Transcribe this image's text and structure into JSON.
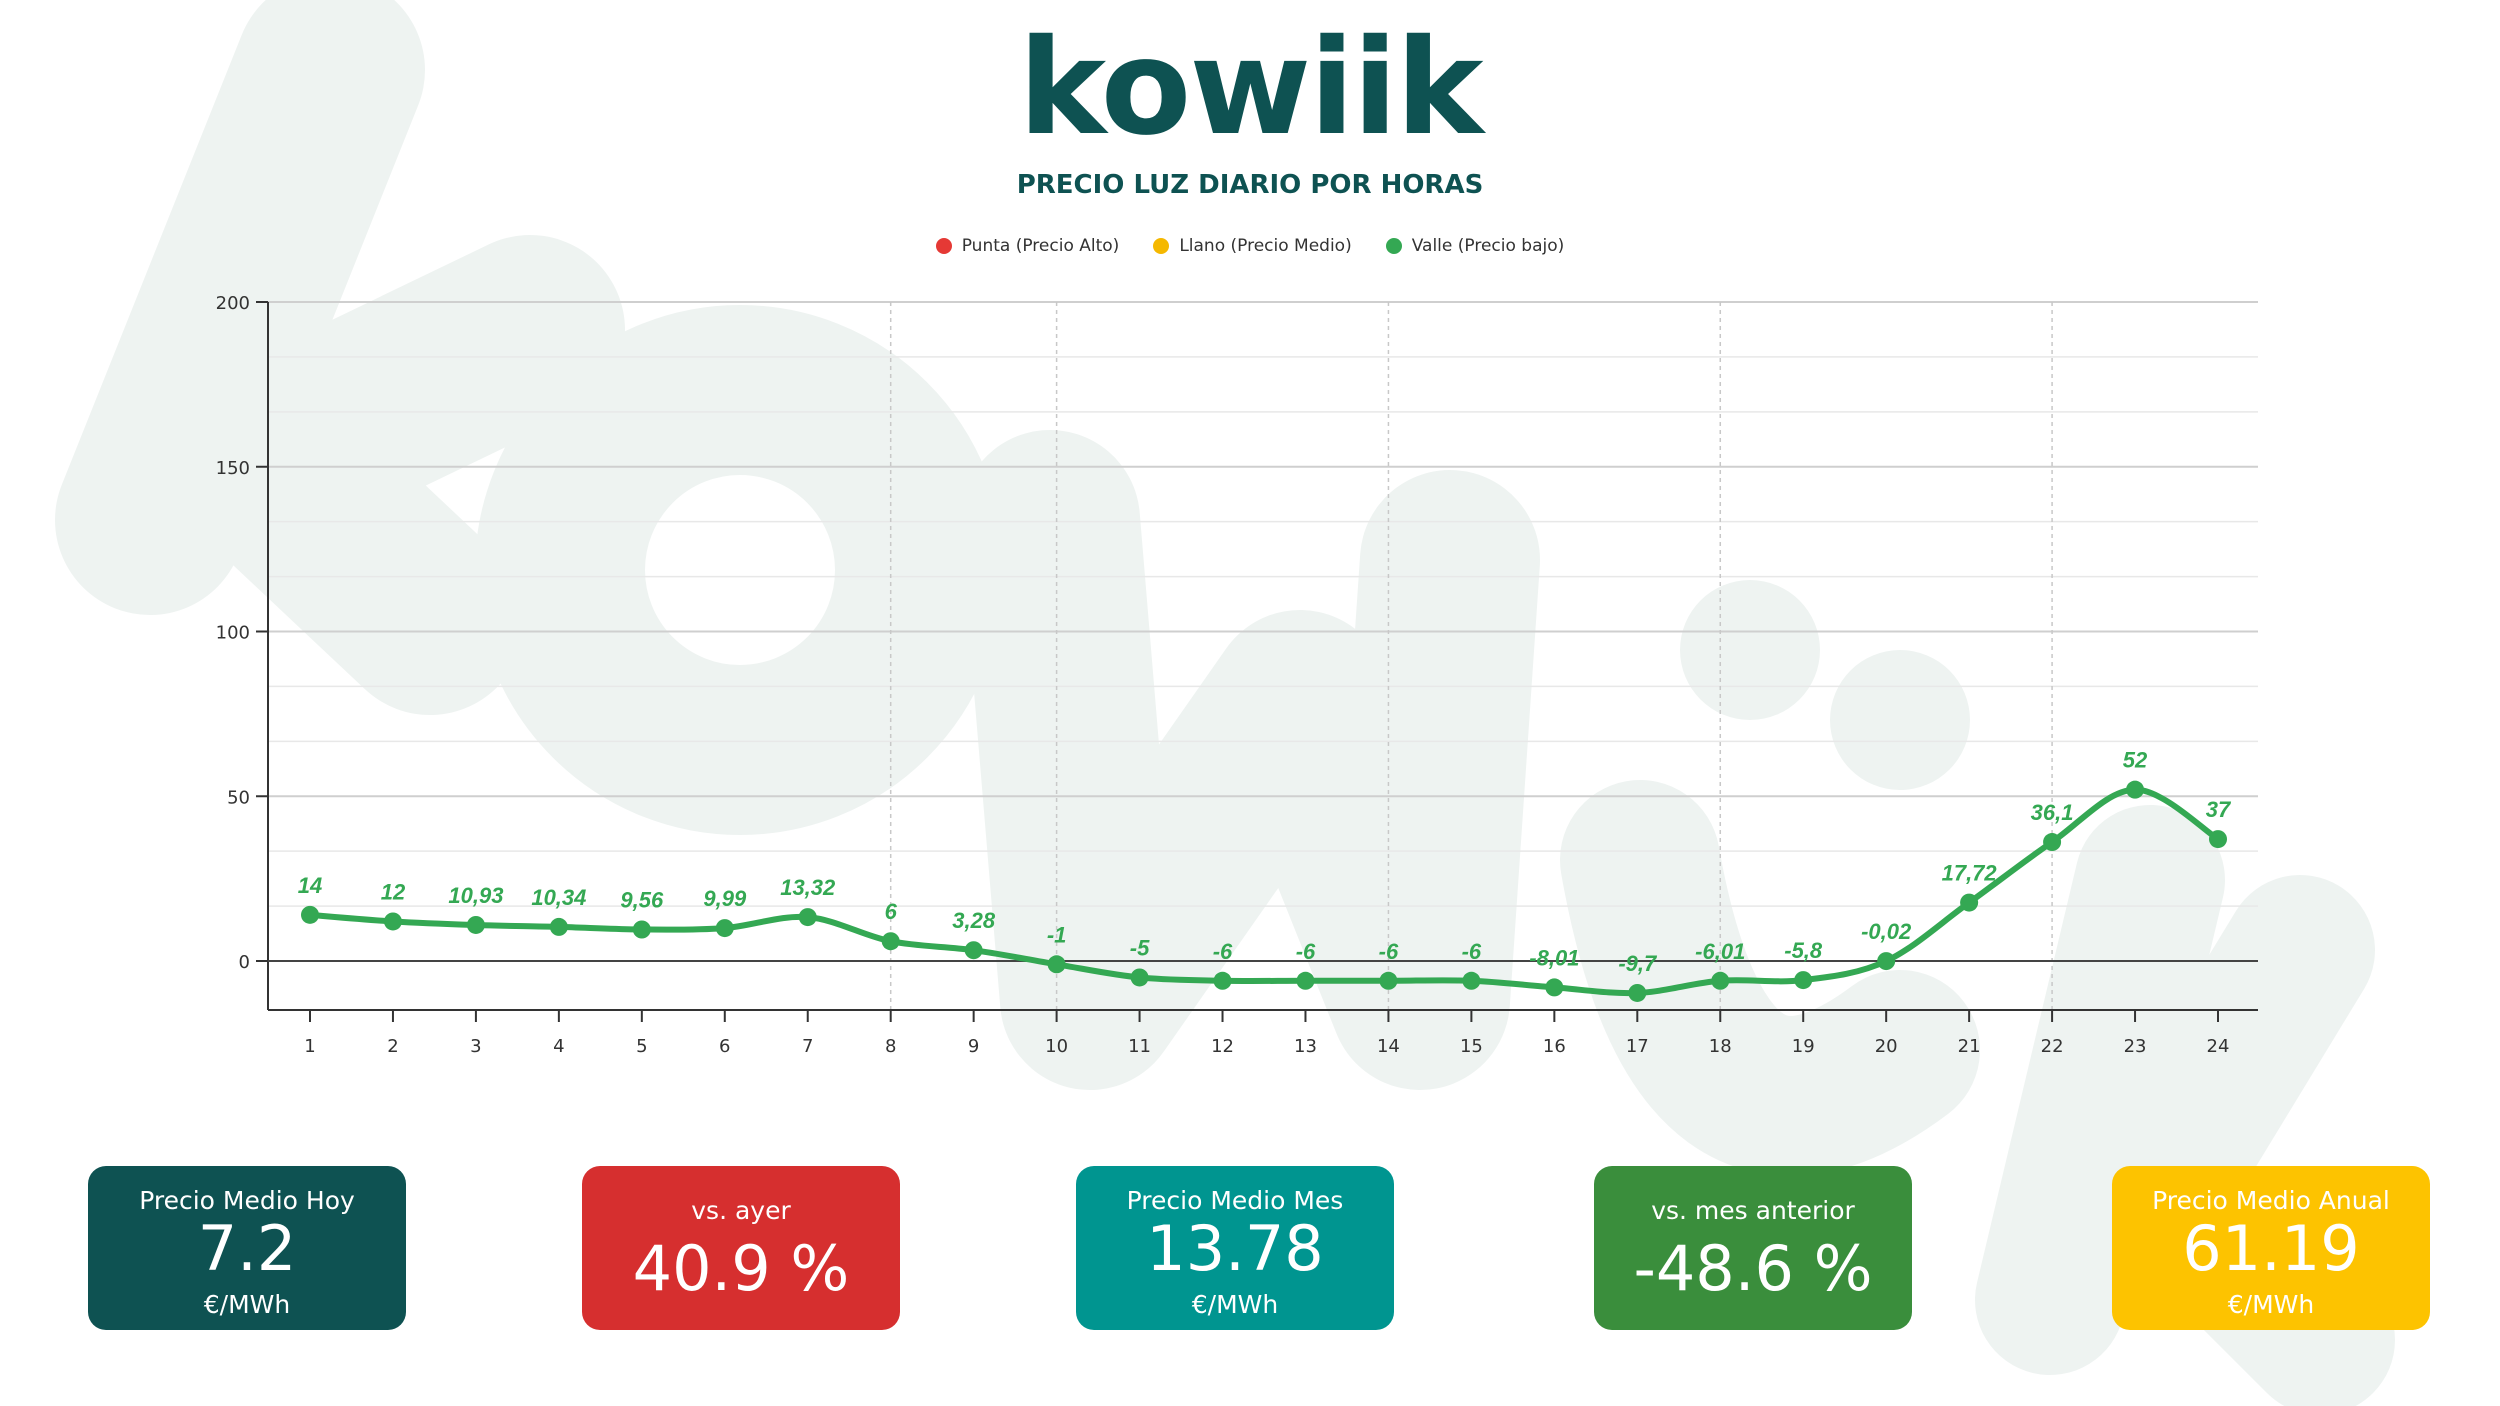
{
  "logo": {
    "text": "kowiik"
  },
  "chart_data": {
    "type": "line",
    "title": "PRECIO LUZ DIARIO POR HORAS",
    "legend": [
      {
        "name": "Punta (Precio Alto)",
        "color": "#e53935"
      },
      {
        "name": "Llano (Precio Medio)",
        "color": "#f5b800"
      },
      {
        "name": "Valle (Precio bajo)",
        "color": "#34a853"
      }
    ],
    "legend_position": "top",
    "x": [
      "1",
      "2",
      "3",
      "4",
      "5",
      "6",
      "7",
      "8",
      "9",
      "10",
      "11",
      "12",
      "13",
      "14",
      "15",
      "16",
      "17",
      "18",
      "19",
      "20",
      "21",
      "22",
      "23",
      "24"
    ],
    "series": [
      {
        "name": "Valle (Precio bajo)",
        "color": "#34a853",
        "values": [
          14,
          12,
          10.93,
          10.34,
          9.56,
          9.99,
          13.32,
          6,
          3.28,
          -1,
          -5,
          -6,
          -6,
          -6,
          -6,
          -8.01,
          -9.7,
          -6.01,
          -5.8,
          -0.02,
          17.72,
          36.1,
          52,
          37
        ],
        "labels": [
          "14",
          "12",
          "10,93",
          "10,34",
          "9,56",
          "9,99",
          "13,32",
          "6",
          "3,28",
          "-1",
          "-5",
          "-6",
          "-6",
          "-6",
          "-6",
          "-8,01",
          "-9,7",
          "-6,01",
          "-5,8",
          "-0,02",
          "17,72",
          "36,1",
          "52",
          "37"
        ]
      }
    ],
    "yticks": [
      "200",
      "150",
      "100",
      "50",
      "0"
    ],
    "ylim": [
      -15,
      200
    ],
    "grid": true
  },
  "cards": [
    {
      "label": "Precio Medio Hoy",
      "value": "7.2",
      "unit": "€/MWh",
      "color": "#0e5252"
    },
    {
      "label": "vs. ayer",
      "value": "40.9 %",
      "unit": "",
      "color": "#d62f2f"
    },
    {
      "label": "Precio Medio Mes",
      "value": "13.78",
      "unit": "€/MWh",
      "color": "#009590"
    },
    {
      "label": "vs. mes anterior",
      "value": "-48.6 %",
      "unit": "",
      "color": "#3a8e3c"
    },
    {
      "label": "Precio Medio Anual",
      "value": "61.19",
      "unit": "€/MWh",
      "color": "#fdc300"
    }
  ]
}
